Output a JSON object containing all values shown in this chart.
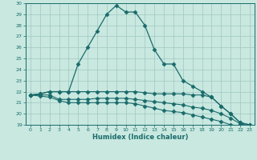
{
  "xlabel": "Humidex (Indice chaleur)",
  "background_color": "#c8e8e0",
  "grid_color": "#a0c8c0",
  "line_color": "#1a6b6b",
  "xlim": [
    -0.5,
    23.5
  ],
  "ylim": [
    19,
    30
  ],
  "xticks": [
    0,
    1,
    2,
    3,
    4,
    5,
    6,
    7,
    8,
    9,
    10,
    11,
    12,
    13,
    14,
    15,
    16,
    17,
    18,
    19,
    20,
    21,
    22,
    23
  ],
  "yticks": [
    19,
    20,
    21,
    22,
    23,
    24,
    25,
    26,
    27,
    28,
    29,
    30
  ],
  "line1_x": [
    0,
    1,
    2,
    3,
    4,
    5,
    6,
    7,
    8,
    9,
    10,
    11,
    12,
    13,
    14,
    15,
    16,
    17,
    18,
    19,
    20,
    21,
    22,
    23
  ],
  "line1_y": [
    21.7,
    21.8,
    22.0,
    22.0,
    22.0,
    24.5,
    26.0,
    27.5,
    29.0,
    29.8,
    29.2,
    29.2,
    28.0,
    25.8,
    24.5,
    24.5,
    23.0,
    22.5,
    22.0,
    21.5,
    20.7,
    20.0,
    19.2,
    19.0
  ],
  "line2_x": [
    0,
    1,
    2,
    3,
    4,
    5,
    6,
    7,
    8,
    9,
    10,
    11,
    12,
    13,
    14,
    15,
    16,
    17,
    18,
    19,
    20,
    21,
    22,
    23
  ],
  "line2_y": [
    21.7,
    21.8,
    22.0,
    22.0,
    22.0,
    22.0,
    22.0,
    22.0,
    22.0,
    22.0,
    22.0,
    22.0,
    21.9,
    21.8,
    21.8,
    21.8,
    21.8,
    21.7,
    21.7,
    21.5,
    20.7,
    20.0,
    19.2,
    19.0
  ],
  "line3_x": [
    0,
    1,
    2,
    3,
    4,
    5,
    6,
    7,
    8,
    9,
    10,
    11,
    12,
    13,
    14,
    15,
    16,
    17,
    18,
    19,
    20,
    21,
    22,
    23
  ],
  "line3_y": [
    21.7,
    21.7,
    21.7,
    21.3,
    21.3,
    21.3,
    21.3,
    21.4,
    21.4,
    21.4,
    21.4,
    21.3,
    21.2,
    21.1,
    21.0,
    20.9,
    20.8,
    20.6,
    20.5,
    20.3,
    20.0,
    19.6,
    19.1,
    18.9
  ],
  "line4_x": [
    0,
    1,
    2,
    3,
    4,
    5,
    6,
    7,
    8,
    9,
    10,
    11,
    12,
    13,
    14,
    15,
    16,
    17,
    18,
    19,
    20,
    21,
    22,
    23
  ],
  "line4_y": [
    21.7,
    21.6,
    21.5,
    21.2,
    21.0,
    21.0,
    21.0,
    21.0,
    21.0,
    21.0,
    21.0,
    20.9,
    20.7,
    20.5,
    20.3,
    20.2,
    20.1,
    19.9,
    19.7,
    19.5,
    19.3,
    19.0,
    18.9,
    18.8
  ]
}
